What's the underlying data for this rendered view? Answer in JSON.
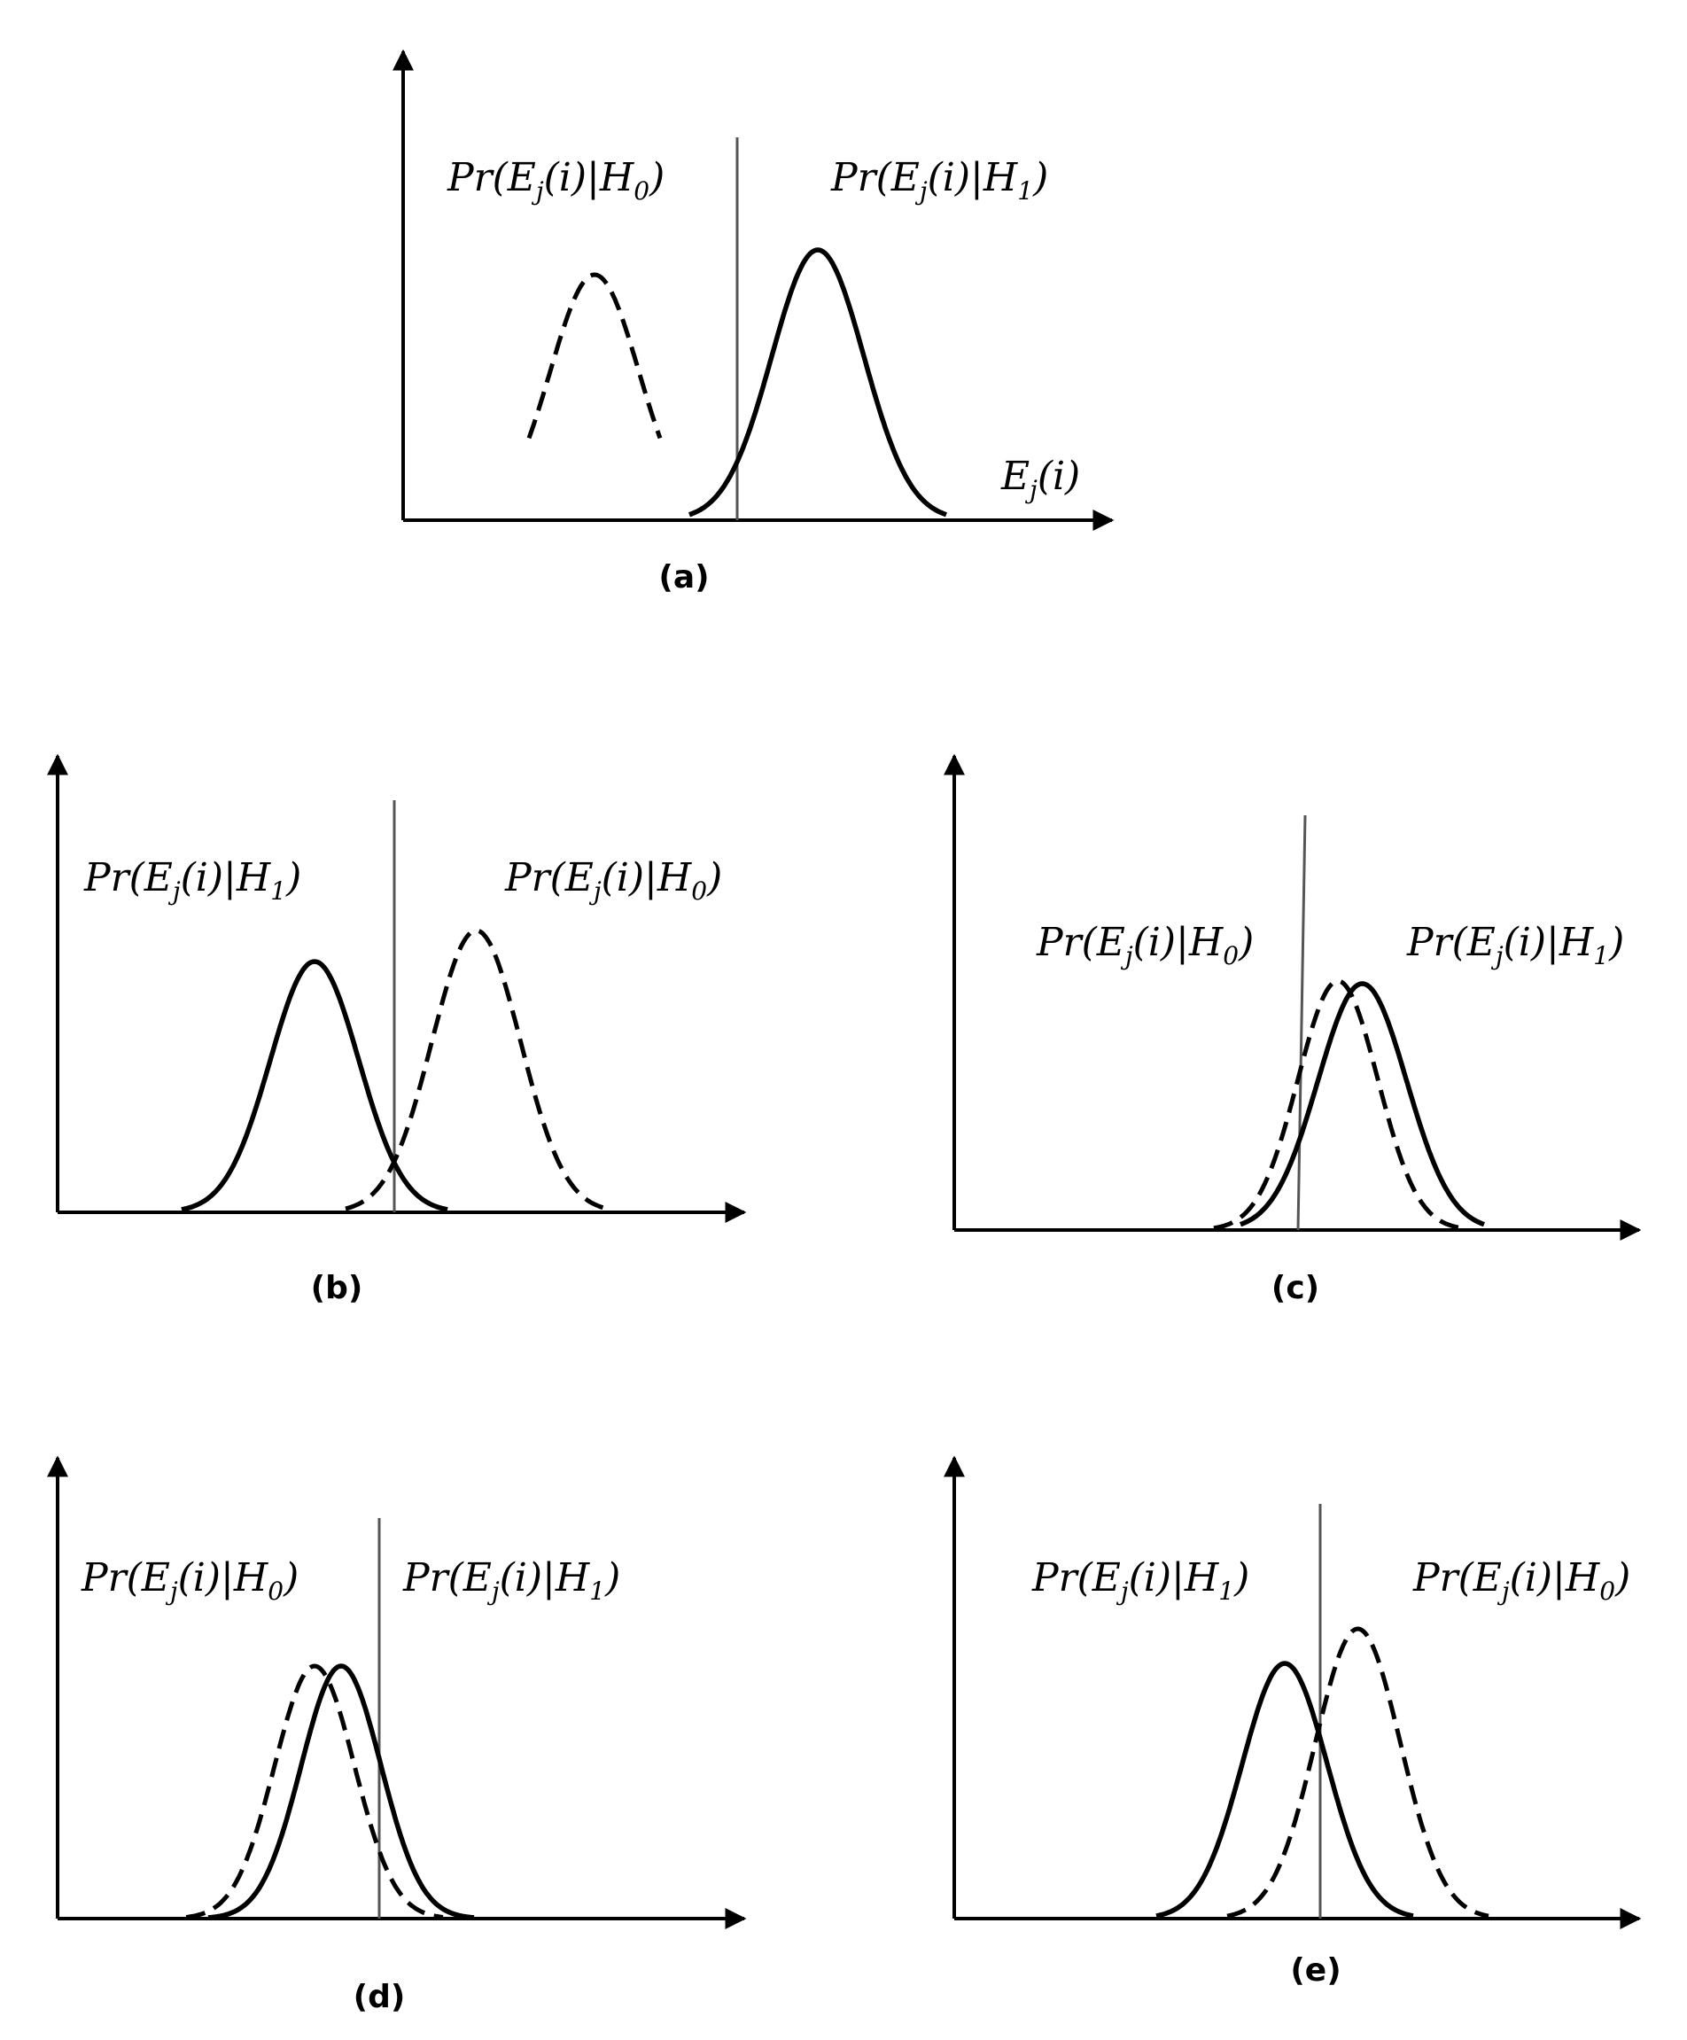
{
  "panels": [
    {
      "caption": "(a)",
      "x_axis_label": {
        "text": "E",
        "sub": "j",
        "tail": "(i)"
      },
      "labels": [
        {
          "hyp": "0"
        },
        {
          "hyp": "1"
        }
      ]
    },
    {
      "caption": "(b)",
      "labels": [
        {
          "hyp": "1"
        },
        {
          "hyp": "0"
        }
      ]
    },
    {
      "caption": "(c)",
      "labels": [
        {
          "hyp": "0"
        },
        {
          "hyp": "1"
        }
      ]
    },
    {
      "caption": "(d)",
      "labels": [
        {
          "hyp": "0"
        },
        {
          "hyp": "1"
        }
      ]
    },
    {
      "caption": "(e)",
      "labels": [
        {
          "hyp": "1"
        },
        {
          "hyp": "0"
        }
      ]
    }
  ],
  "label_parts": {
    "head": "Pr(E",
    "sub_j": "j",
    "mid": "(i)|H",
    "tail": ")"
  }
}
